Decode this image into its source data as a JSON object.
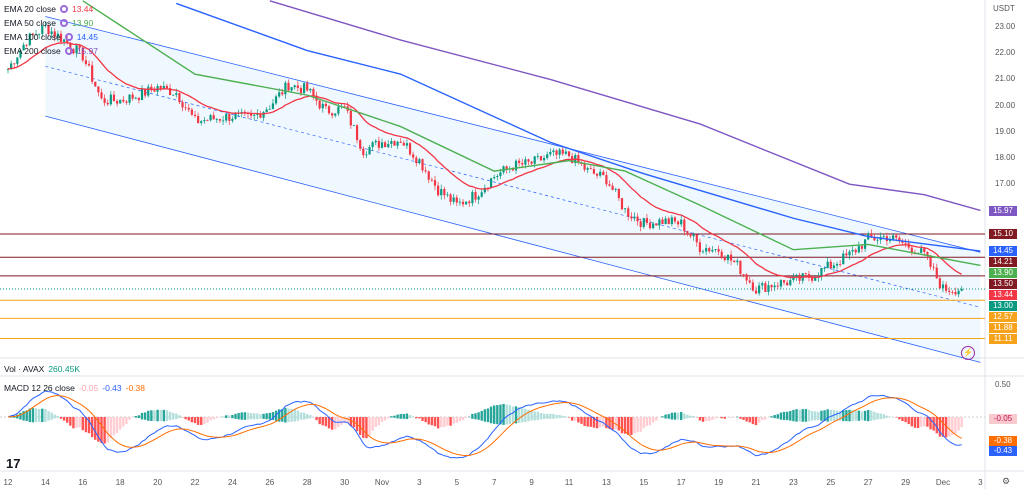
{
  "legend": [
    {
      "label": "EMA 20 close",
      "value": "13.44",
      "color": "#f23645"
    },
    {
      "label": "EMA 50 close",
      "value": "13.90",
      "color": "#4caf50"
    },
    {
      "label": "EMA 100 close",
      "value": "14.45",
      "color": "#2962ff"
    },
    {
      "label": "EMA 200 close",
      "value": "15.97",
      "color": "#7e57c2"
    }
  ],
  "currency": "USDT",
  "volume": {
    "label": "Vol · AVAX",
    "value": "260.45K"
  },
  "macd": {
    "label": "MACD 12 26 close",
    "hist": "-0.05",
    "macd": "-0.43",
    "signal": "-0.38"
  },
  "chart_data": {
    "type": "candlestick",
    "x_ticks": [
      "12",
      "14",
      "16",
      "18",
      "20",
      "22",
      "24",
      "26",
      "28",
      "30",
      "Nov",
      "3",
      "5",
      "7",
      "9",
      "11",
      "13",
      "15",
      "17",
      "19",
      "21",
      "23",
      "25",
      "27",
      "29",
      "Dec",
      "3"
    ],
    "y_ticks": [
      "23.00",
      "22.00",
      "21.00",
      "20.00",
      "19.00",
      "18.00",
      "17.00"
    ],
    "ylim": [
      10.0,
      24.0
    ],
    "daily_close_from_oct12": [
      21.4,
      22.5,
      23.0,
      22.5,
      21.9,
      20.2,
      20.2,
      20.4,
      20.7,
      20.5,
      19.4,
      19.5,
      19.6,
      19.5,
      20.0,
      20.8,
      20.6,
      19.8,
      19.9,
      18.3,
      18.6,
      18.7,
      17.9,
      16.8,
      16.2,
      16.6,
      17.3,
      17.7,
      17.8,
      18.1,
      18.1,
      17.5,
      17.2,
      16.0,
      15.5,
      15.6,
      15.5,
      14.6,
      14.5,
      13.9,
      13.0,
      13.2,
      13.3,
      13.5,
      13.9,
      14.3,
      14.9,
      15.0,
      14.7,
      14.3,
      13.0,
      13.0
    ],
    "ema50_points": [
      [
        4,
        24.0
      ],
      [
        10,
        21.2
      ],
      [
        16,
        20.4
      ],
      [
        21,
        19.2
      ],
      [
        26,
        17.5
      ],
      [
        30,
        17.9
      ],
      [
        33,
        17.5
      ],
      [
        37,
        16.2
      ],
      [
        42,
        14.5
      ],
      [
        46,
        14.7
      ],
      [
        52,
        13.9
      ]
    ],
    "ema100_points": [
      [
        9,
        23.9
      ],
      [
        16,
        22.1
      ],
      [
        21,
        21.2
      ],
      [
        29,
        18.6
      ],
      [
        34,
        17.4
      ],
      [
        42,
        15.7
      ],
      [
        46,
        15.0
      ],
      [
        52,
        14.45
      ]
    ],
    "ema200_points": [
      [
        14,
        24.0
      ],
      [
        21,
        22.5
      ],
      [
        29,
        21.0
      ],
      [
        37,
        19.3
      ],
      [
        45,
        17.0
      ],
      [
        49,
        16.6
      ],
      [
        52,
        16.0
      ]
    ],
    "channel": {
      "upper": [
        [
          2,
          23.4
        ],
        [
          52,
          14.4
        ]
      ],
      "lower": [
        [
          2,
          19.6
        ],
        [
          52,
          10.2
        ]
      ]
    },
    "horizontal_levels": [
      {
        "value": "15.10",
        "color": "#801922"
      },
      {
        "value": "14.21",
        "color": "#801922"
      },
      {
        "value": "13.50",
        "color": "#801922"
      },
      {
        "value": "12.57",
        "color": "#f7a21b"
      },
      {
        "value": "11.88",
        "color": "#f7a21b"
      },
      {
        "value": "11.11",
        "color": "#f7a21b"
      }
    ],
    "price_tags": [
      {
        "value": "15.97",
        "color": "#7e57c2",
        "price": 15.97
      },
      {
        "value": "15.10",
        "color": "#801922",
        "price": 15.1
      },
      {
        "value": "14.45",
        "color": "#2962ff",
        "price": 14.45
      },
      {
        "value": "14.21",
        "color": "#801922",
        "price": 14.21
      },
      {
        "value": "13.90",
        "color": "#4caf50",
        "price": 13.9
      },
      {
        "value": "13.50",
        "color": "#801922",
        "price": 13.5
      },
      {
        "value": "13.44",
        "color": "#f23645",
        "price": 13.44
      },
      {
        "value": "13.00",
        "color": "#089981",
        "price": 13.0
      },
      {
        "value": "12.57",
        "color": "#f7a21b",
        "price": 12.57
      },
      {
        "value": "11.88",
        "color": "#f7a21b",
        "price": 11.88
      },
      {
        "value": "11.11",
        "color": "#f7a21b",
        "price": 11.11
      }
    ],
    "macd_ticks": [
      "0.50"
    ],
    "macd_tags": [
      {
        "value": "-0.05",
        "color": "#f8c9cd",
        "text": "#c2185b"
      },
      {
        "value": "-0.38",
        "color": "#ff6d00",
        "text": "#fff"
      },
      {
        "value": "-0.43",
        "color": "#2962ff",
        "text": "#fff"
      }
    ],
    "colors": {
      "up": "#089981",
      "down": "#f23645",
      "ema20": "#f23645",
      "ema50": "#4caf50",
      "ema100": "#2962ff",
      "ema200": "#7e57c2",
      "macd": "#2962ff",
      "signal": "#ff6d00"
    }
  }
}
